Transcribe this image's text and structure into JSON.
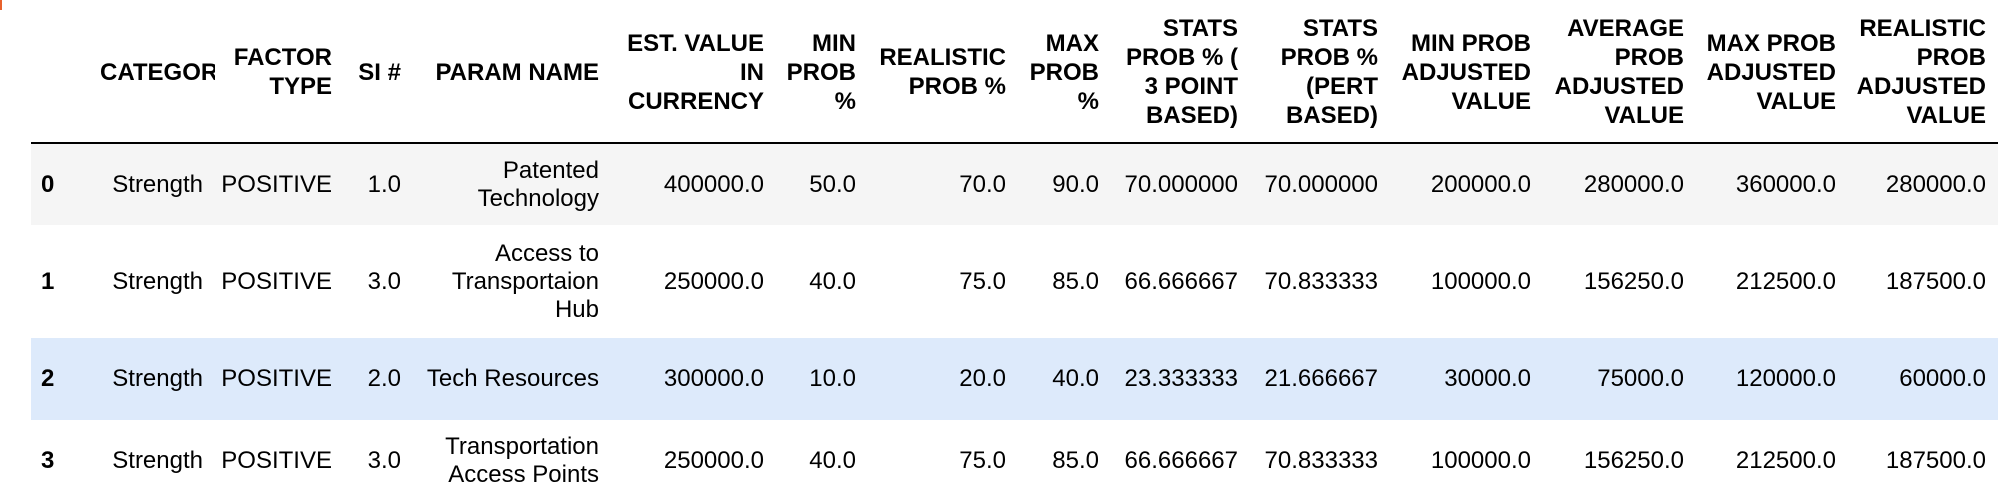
{
  "colors": {
    "header_border": "#000000",
    "row_odd_bg": "#f5f5f5",
    "row_even_bg": "#ffffff",
    "row_hover_bg": "#ddeafb",
    "edge_mark": "#e8612c"
  },
  "table": {
    "columns": [
      "",
      "CATEGORY",
      "FACTOR TYPE",
      "SI #",
      "PARAM NAME",
      "EST. VALUE IN CURRENCY",
      "MIN PROB %",
      "REALISTIC PROB %",
      "MAX PROB %",
      "STATS PROB % ( 3 POINT BASED)",
      "STATS PROB % (PERT BASED)",
      "MIN PROB ADJUSTED VALUE",
      "AVERAGE PROB ADJUSTED VALUE",
      "MAX PROB ADJUSTED VALUE",
      "REALISTIC PROB ADJUSTED VALUE"
    ],
    "rows": [
      {
        "index": "0",
        "cells": [
          "Strength",
          "POSITIVE",
          "1.0",
          "Patented Technology",
          "400000.0",
          "50.0",
          "70.0",
          "90.0",
          "70.000000",
          "70.000000",
          "200000.0",
          "280000.0",
          "360000.0",
          "280000.0"
        ]
      },
      {
        "index": "1",
        "cells": [
          "Strength",
          "POSITIVE",
          "3.0",
          "Access to Transportaion Hub",
          "250000.0",
          "40.0",
          "75.0",
          "85.0",
          "66.666667",
          "70.833333",
          "100000.0",
          "156250.0",
          "212500.0",
          "187500.0"
        ]
      },
      {
        "index": "2",
        "cells": [
          "Strength",
          "POSITIVE",
          "2.0",
          "Tech Resources",
          "300000.0",
          "10.0",
          "20.0",
          "40.0",
          "23.333333",
          "21.666667",
          "30000.0",
          "75000.0",
          "120000.0",
          "60000.0"
        ]
      },
      {
        "index": "3",
        "cells": [
          "Strength",
          "POSITIVE",
          "3.0",
          "Transportation Access Points",
          "250000.0",
          "40.0",
          "75.0",
          "85.0",
          "66.666667",
          "70.833333",
          "100000.0",
          "156250.0",
          "212500.0",
          "187500.0"
        ]
      }
    ]
  }
}
